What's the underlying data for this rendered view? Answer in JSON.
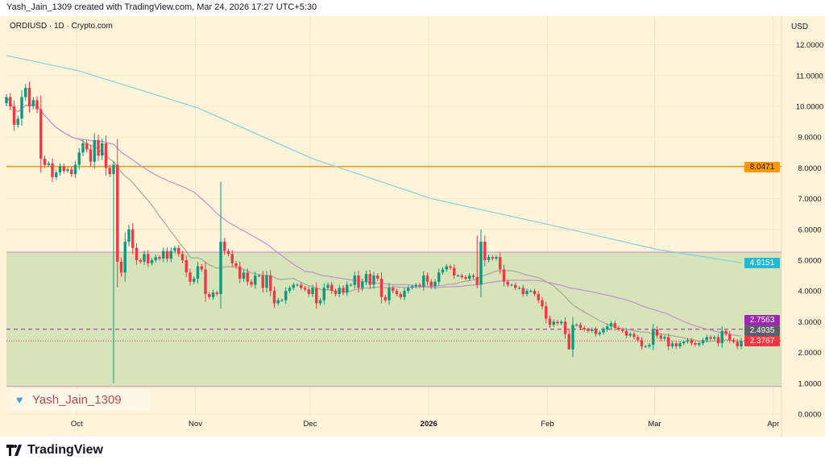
{
  "header": {
    "credit": "Yash_Jain_1309 created with TradingView.com, Mar 24, 2026 17:27 UTC+5:30"
  },
  "symbol": "ORDIUSD · 1D · Crypto.com",
  "currency": "USD",
  "watermark": {
    "text": "Yash_Jain_1309",
    "icon": "blue-heart-icon"
  },
  "footer": {
    "brand": "TradingView",
    "icon": "tradingview-logo-icon"
  },
  "colors": {
    "up": "#089981",
    "down": "#f23645",
    "orange_level": "#ff9800",
    "zone": "#d7e4b9",
    "zone_border": "#d8a6c8",
    "ma_fast": "#a8a69a",
    "ma_slow": "#c38fd0",
    "ma_long": "#7fd3d8",
    "dashed_level": "#9c27b0"
  },
  "chart_data": {
    "type": "candlestick",
    "title": "ORDIUSD · 1D · Crypto.com",
    "ylim": [
      0,
      12.4
    ],
    "yticks": [
      "0.0000",
      "1.0000",
      "2.0000",
      "3.0000",
      "4.0000",
      "5.0000",
      "6.0000",
      "7.0000",
      "8.0000",
      "9.0000",
      "10.0000",
      "11.0000",
      "12.0000"
    ],
    "xticks": [
      {
        "label": "Oct",
        "date": "2025-10-01",
        "bold": false
      },
      {
        "label": "Nov",
        "date": "2025-11-01",
        "bold": false
      },
      {
        "label": "Dec",
        "date": "2025-12-01",
        "bold": false
      },
      {
        "label": "2026",
        "date": "2026-01-01",
        "bold": true
      },
      {
        "label": "Feb",
        "date": "2026-02-01",
        "bold": false
      },
      {
        "label": "Mar",
        "date": "2026-03-01",
        "bold": false
      },
      {
        "label": "Apr",
        "date": "2026-04-01",
        "bold": false
      }
    ],
    "start_date": "2025-09-12",
    "closes": [
      10.3,
      10.0,
      9.4,
      9.6,
      10.3,
      10.6,
      10.0,
      10.2,
      9.9,
      8.3,
      8.1,
      8.15,
      7.7,
      7.85,
      8.05,
      7.9,
      7.95,
      7.8,
      8.1,
      8.5,
      8.8,
      8.6,
      8.2,
      8.9,
      8.4,
      8.8,
      8.0,
      7.8,
      8.1,
      4.95,
      4.6,
      5.6,
      6.0,
      5.4,
      5.0,
      4.95,
      5.2,
      4.9,
      5.0,
      5.1,
      5.05,
      5.3,
      5.05,
      5.3,
      5.4,
      5.2,
      5.0,
      4.6,
      4.3,
      4.4,
      4.8,
      4.7,
      3.9,
      3.8,
      3.95,
      3.9,
      5.6,
      5.3,
      5.2,
      4.9,
      4.8,
      4.4,
      4.6,
      4.3,
      4.2,
      4.5,
      4.5,
      4.1,
      4.5,
      4.0,
      3.6,
      3.7,
      3.7,
      4.0,
      4.1,
      4.2,
      4.2,
      4.1,
      4.05,
      3.9,
      4.1,
      3.6,
      3.7,
      4.1,
      4.2,
      4.0,
      3.9,
      4.1,
      3.95,
      4.2,
      4.2,
      4.5,
      4.1,
      4.3,
      4.55,
      4.2,
      4.5,
      4.4,
      3.8,
      3.7,
      4.1,
      4.0,
      3.9,
      3.8,
      4.0,
      4.1,
      4.15,
      4.2,
      4.15,
      4.5,
      4.3,
      4.15,
      4.3,
      4.6,
      4.7,
      4.8,
      4.75,
      4.5,
      4.5,
      4.45,
      4.4,
      4.5,
      4.45,
      4.2,
      5.6,
      5.0,
      5.1,
      5.05,
      5.1,
      4.7,
      4.3,
      4.2,
      4.2,
      4.1,
      4.1,
      3.9,
      4.0,
      4.0,
      3.9,
      3.7,
      3.5,
      3.1,
      2.9,
      3.0,
      2.95,
      3.0,
      2.6,
      2.1,
      2.9,
      2.9,
      2.8,
      2.75,
      2.7,
      2.75,
      2.6,
      2.65,
      2.75,
      2.85,
      2.95,
      2.8,
      2.75,
      2.7,
      2.55,
      2.6,
      2.5,
      2.4,
      2.2,
      2.2,
      2.25,
      2.75,
      2.55,
      2.45,
      2.5,
      2.2,
      2.3,
      2.2,
      2.3,
      2.35,
      2.4,
      2.3,
      2.25,
      2.3,
      2.4,
      2.5,
      2.45,
      2.5,
      2.3,
      2.7,
      2.6,
      2.4,
      2.35,
      2.2,
      2.3767
    ],
    "first_open": 10.1,
    "notable_wicks": [
      {
        "date": "2025-10-10",
        "low": 1.0
      },
      {
        "date": "2025-11-07",
        "high": 7.55
      },
      {
        "date": "2026-01-13",
        "high": 5.8
      },
      {
        "date": "2026-02-06",
        "low": 2.15
      }
    ],
    "long_ma": [
      [
        "2025-09-12",
        11.65
      ],
      [
        "2025-10-01",
        11.15
      ],
      [
        "2025-11-01",
        9.95
      ],
      [
        "2025-12-01",
        8.3
      ],
      [
        "2026-01-01",
        7.0
      ],
      [
        "2026-02-01",
        6.15
      ],
      [
        "2026-03-01",
        5.35
      ],
      [
        "2026-03-23",
        4.9151
      ]
    ],
    "levels": [
      {
        "value": 8.0471,
        "label": "8.0471",
        "style": "solid",
        "color": "#ff9800"
      },
      {
        "value": 2.7563,
        "label": "2.7563",
        "style": "dashed",
        "color": "#9c27b0"
      },
      {
        "value": 2.3767,
        "label": "2.3767",
        "style": "dotted",
        "color": "#f23645"
      }
    ],
    "zone": {
      "top": 5.26,
      "bottom": 0.9
    },
    "price_labels": [
      {
        "label": "4.9151",
        "color": "#22b8d6",
        "value": 4.9151
      },
      {
        "label": "2.7563",
        "color": "#9c27b0",
        "value": 2.7563
      },
      {
        "label": "2.4935",
        "color": "#5d606b",
        "value": 2.4935
      },
      {
        "label": "2.3767",
        "color": "#f23645",
        "value": 2.3767
      }
    ],
    "grid": true
  }
}
